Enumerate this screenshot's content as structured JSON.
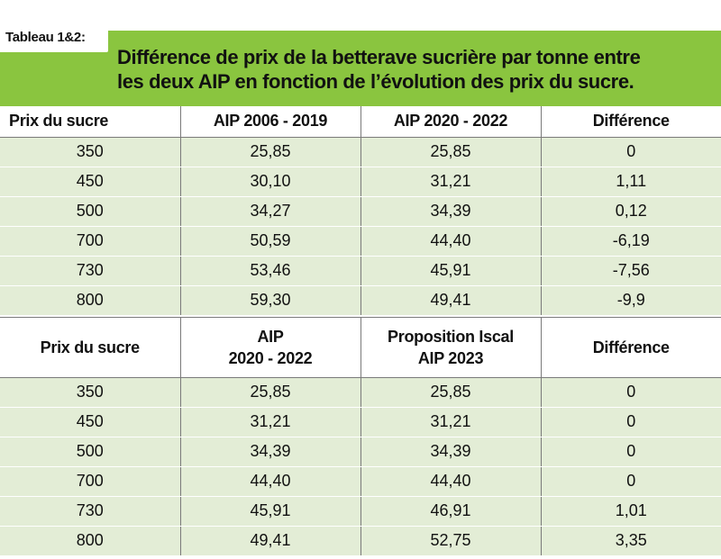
{
  "tag": "Tableau 1&2:",
  "title": {
    "line1": "Différence de prix de la betterave sucrière par tonne entre",
    "line2": "les deux AIP en fonction de l’évolution des prix du sucre."
  },
  "table1": {
    "headers": [
      "Prix du sucre",
      "AIP 2006 - 2019",
      "AIP 2020 - 2022",
      "Différence"
    ],
    "rows": [
      [
        "350",
        "25,85",
        "25,85",
        "0"
      ],
      [
        "450",
        "30,10",
        "31,21",
        "1,11"
      ],
      [
        "500",
        "34,27",
        "34,39",
        "0,12"
      ],
      [
        "700",
        "50,59",
        "44,40",
        "-6,19"
      ],
      [
        "730",
        "53,46",
        "45,91",
        "-7,56"
      ],
      [
        "800",
        "59,30",
        "49,41",
        "-9,9"
      ]
    ]
  },
  "table2": {
    "headers": [
      {
        "line1": "Prix du sucre",
        "line2": ""
      },
      {
        "line1": "AIP",
        "line2": "2020 - 2022"
      },
      {
        "line1": "Proposition Iscal",
        "line2": "AIP 2023"
      },
      {
        "line1": "Différence",
        "line2": ""
      }
    ],
    "rows": [
      [
        "350",
        "25,85",
        "25,85",
        "0"
      ],
      [
        "450",
        "31,21",
        "31,21",
        "0"
      ],
      [
        "500",
        "34,39",
        "34,39",
        "0"
      ],
      [
        "700",
        "44,40",
        "44,40",
        "0"
      ],
      [
        "730",
        "45,91",
        "46,91",
        "1,01"
      ],
      [
        "800",
        "49,41",
        "52,75",
        "3,35"
      ]
    ]
  }
}
